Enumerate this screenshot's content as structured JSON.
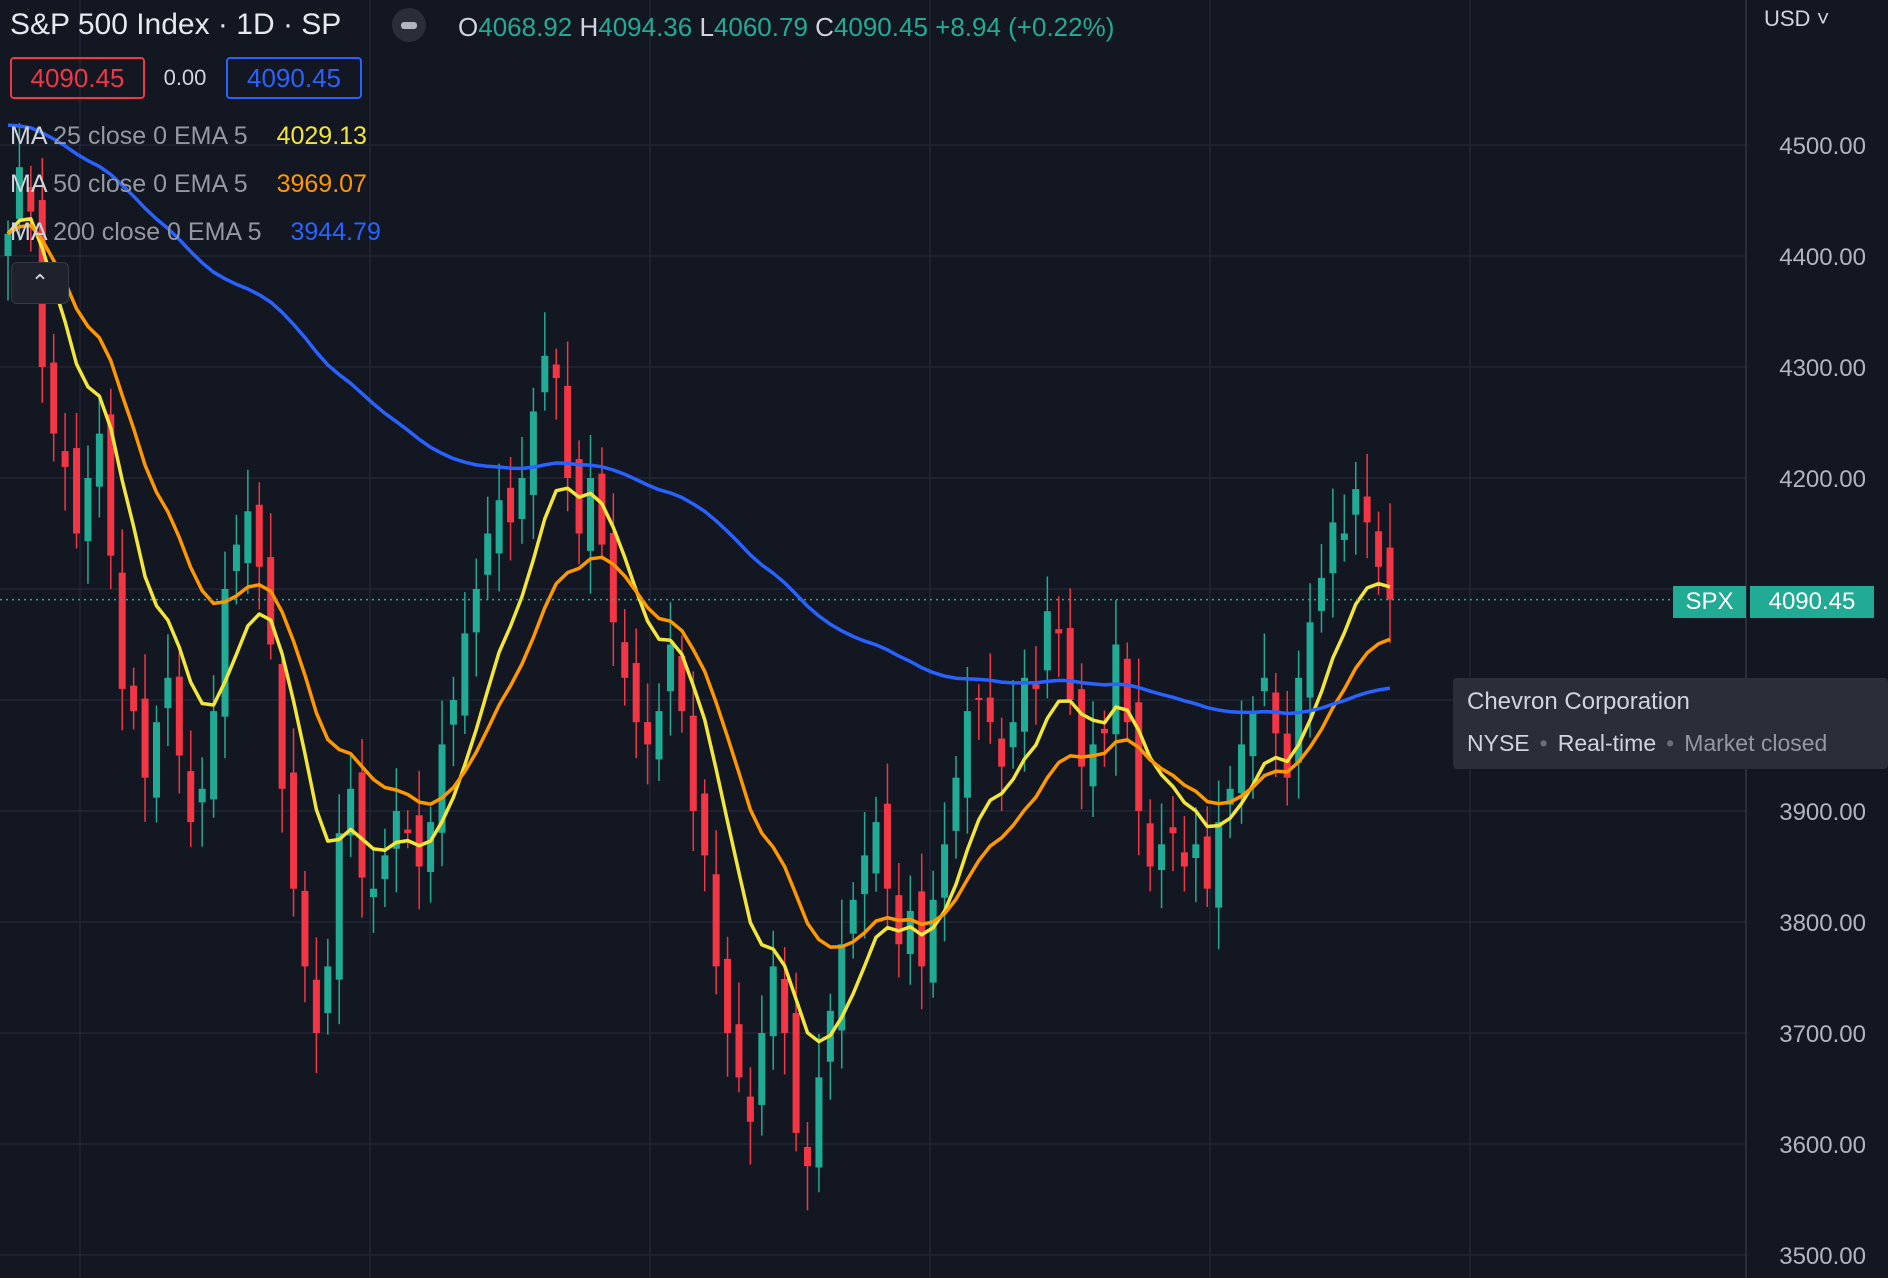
{
  "header": {
    "title": "S&P 500 Index · 1D · SP",
    "ohlc": {
      "o_label": "O",
      "o_value": "4068.92",
      "h_label": "H",
      "h_value": "4094.36",
      "l_label": "L",
      "l_value": "4060.79",
      "c_label": "C",
      "c_value": "4090.45",
      "change": "+8.94 (+0.22%)"
    },
    "sell_price": "4090.45",
    "spread": "0.00",
    "buy_price": "4090.45"
  },
  "indicators": [
    {
      "name": "MA",
      "args": "25 close 0 EMA 5",
      "value": "4029.13",
      "color": "#f2e63c"
    },
    {
      "name": "MA",
      "args": "50 close 0 EMA 5",
      "value": "3969.07",
      "color": "#ff9800"
    },
    {
      "name": "MA",
      "args": "200 close 0 EMA 5",
      "value": "3944.79",
      "color": "#2962ff"
    }
  ],
  "price_axis": {
    "currency": "USD",
    "labels": [
      "4500.00",
      "4400.00",
      "4300.00",
      "4200.00",
      "3900.00",
      "3800.00",
      "3700.00",
      "3600.00",
      "3500.00"
    ]
  },
  "last_price_tag": {
    "symbol": "SPX",
    "price": "4090.45"
  },
  "tooltip": {
    "title": "Chevron Corporation",
    "exchange": "NYSE",
    "realtime": "Real-time",
    "status": "Market closed"
  },
  "colors": {
    "background": "#131722",
    "up": "#22ab94",
    "down": "#f23645",
    "grid": "#232734"
  },
  "chart_data": {
    "type": "candlestick",
    "interval": "1D",
    "symbol": "SPX",
    "ylim": [
      3500,
      4560
    ],
    "last_price": 4090.45,
    "closes": [
      4420,
      4480,
      4440,
      4300,
      4240,
      4210,
      4150,
      4200,
      4240,
      4130,
      4010,
      3990,
      3930,
      3980,
      4020,
      3950,
      3890,
      3920,
      3990,
      4100,
      4140,
      4170,
      4120,
      4050,
      3920,
      3830,
      3760,
      3700,
      3760,
      3880,
      3920,
      3840,
      3830,
      3860,
      3900,
      3880,
      3850,
      3890,
      3960,
      4000,
      4060,
      4100,
      4150,
      4180,
      4160,
      4200,
      4260,
      4310,
      4290,
      4200,
      4150,
      4200,
      4140,
      4070,
      4020,
      3980,
      3960,
      3990,
      4050,
      3990,
      3900,
      3860,
      3760,
      3700,
      3660,
      3620,
      3700,
      3760,
      3700,
      3610,
      3580,
      3660,
      3720,
      3780,
      3820,
      3860,
      3890,
      3830,
      3780,
      3810,
      3760,
      3820,
      3870,
      3930,
      3990,
      4000,
      3980,
      3940,
      3980,
      4020,
      4010,
      4080,
      4060,
      4000,
      3940,
      3960,
      3970,
      4050,
      3980,
      3900,
      3850,
      3870,
      3880,
      3850,
      3870,
      3830,
      3890,
      3920,
      3960,
      3990,
      4020,
      3970,
      3930,
      4020,
      4070,
      4110,
      4160,
      4150,
      4190,
      4160,
      4120,
      4090.45
    ]
  }
}
